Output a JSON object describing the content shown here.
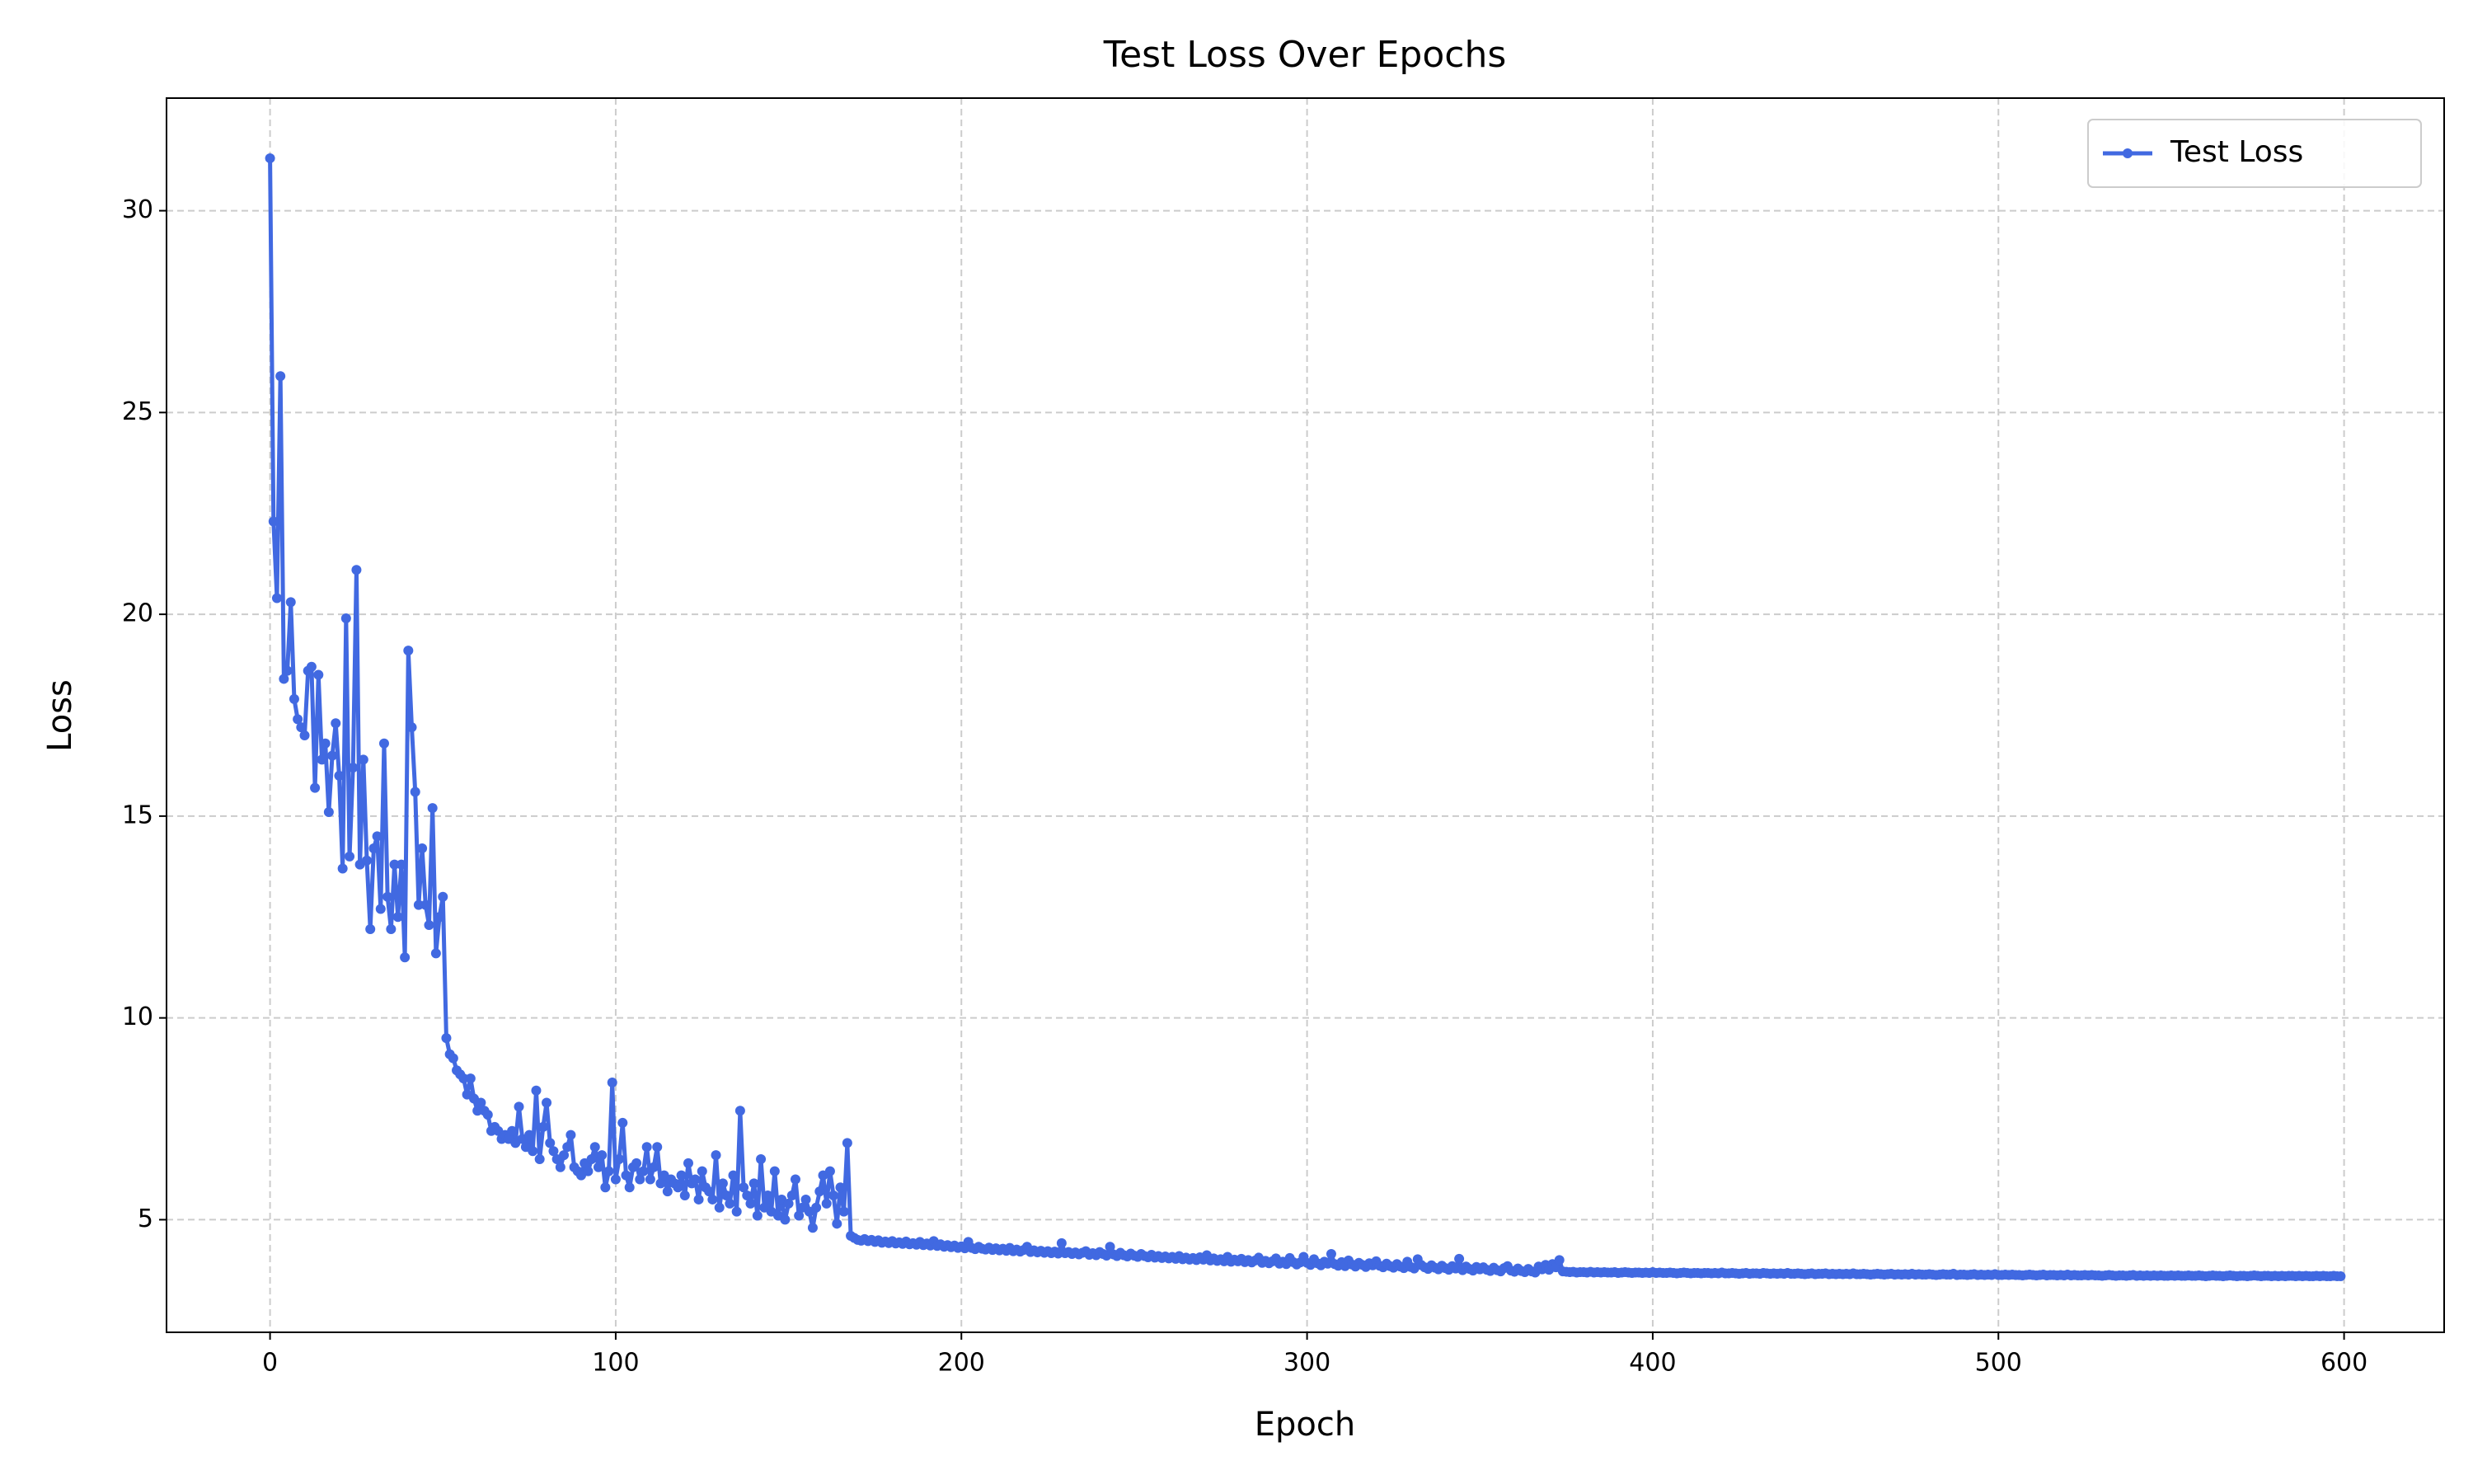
{
  "chart_data": {
    "type": "line",
    "title": "Test Loss Over Epochs",
    "x_label": "Epoch",
    "y_label": "Loss",
    "grid": true,
    "legend": "upper right",
    "xlim": [
      -29.95,
      628.95
    ],
    "ylim": [
      2.21,
      32.79
    ],
    "xticks": [
      0,
      100,
      200,
      300,
      400,
      500,
      600
    ],
    "yticks": [
      5,
      10,
      15,
      20,
      25,
      30
    ],
    "x": [
      0,
      1,
      2,
      3,
      4,
      5,
      6,
      7,
      8,
      9,
      10,
      11,
      12,
      13,
      14,
      15,
      16,
      17,
      18,
      19,
      20,
      21,
      22,
      23,
      24,
      25,
      26,
      27,
      28,
      29,
      30,
      31,
      32,
      33,
      34,
      35,
      36,
      37,
      38,
      39,
      40,
      41,
      42,
      43,
      44,
      45,
      46,
      47,
      48,
      49,
      50,
      51,
      52,
      53,
      54,
      55,
      56,
      57,
      58,
      59,
      60,
      61,
      62,
      63,
      64,
      65,
      66,
      67,
      68,
      69,
      70,
      71,
      72,
      73,
      74,
      75,
      76,
      77,
      78,
      79,
      80,
      81,
      82,
      83,
      84,
      85,
      86,
      87,
      88,
      89,
      90,
      91,
      92,
      93,
      94,
      95,
      96,
      97,
      98,
      99,
      100,
      101,
      102,
      103,
      104,
      105,
      106,
      107,
      108,
      109,
      110,
      111,
      112,
      113,
      114,
      115,
      116,
      117,
      118,
      119,
      120,
      121,
      122,
      123,
      124,
      125,
      126,
      127,
      128,
      129,
      130,
      131,
      132,
      133,
      134,
      135,
      136,
      137,
      138,
      139,
      140,
      141,
      142,
      143,
      144,
      145,
      146,
      147,
      148,
      149,
      150,
      151,
      152,
      153,
      154,
      155,
      156,
      157,
      158,
      159,
      160,
      161,
      162,
      163,
      164,
      165,
      166,
      167,
      168,
      169,
      170,
      171,
      172,
      173,
      174,
      175,
      176,
      177,
      178,
      179,
      180,
      181,
      182,
      183,
      184,
      185,
      186,
      187,
      188,
      189,
      190,
      191,
      192,
      193,
      194,
      195,
      196,
      197,
      198,
      199,
      200,
      201,
      202,
      203,
      204,
      205,
      206,
      207,
      208,
      209,
      210,
      211,
      212,
      213,
      214,
      215,
      216,
      217,
      218,
      219,
      220,
      221,
      222,
      223,
      224,
      225,
      226,
      227,
      228,
      229,
      230,
      231,
      232,
      233,
      234,
      235,
      236,
      237,
      238,
      239,
      240,
      241,
      242,
      243,
      244,
      245,
      246,
      247,
      248,
      249,
      250,
      251,
      252,
      253,
      254,
      255,
      256,
      257,
      258,
      259,
      260,
      261,
      262,
      263,
      264,
      265,
      266,
      267,
      268,
      269,
      270,
      271,
      272,
      273,
      274,
      275,
      276,
      277,
      278,
      279,
      280,
      281,
      282,
      283,
      284,
      285,
      286,
      287,
      288,
      289,
      290,
      291,
      292,
      293,
      294,
      295,
      296,
      297,
      298,
      299,
      300,
      301,
      302,
      303,
      304,
      305,
      306,
      307,
      308,
      309,
      310,
      311,
      312,
      313,
      314,
      315,
      316,
      317,
      318,
      319,
      320,
      321,
      322,
      323,
      324,
      325,
      326,
      327,
      328,
      329,
      330,
      331,
      332,
      333,
      334,
      335,
      336,
      337,
      338,
      339,
      340,
      341,
      342,
      343,
      344,
      345,
      346,
      347,
      348,
      349,
      350,
      351,
      352,
      353,
      354,
      355,
      356,
      357,
      358,
      359,
      360,
      361,
      362,
      363,
      364,
      365,
      366,
      367,
      368,
      369,
      370,
      371,
      372,
      373,
      374,
      375,
      376,
      377,
      378,
      379,
      380,
      381,
      382,
      383,
      384,
      385,
      386,
      387,
      388,
      389,
      390,
      391,
      392,
      393,
      394,
      395,
      396,
      397,
      398,
      399,
      400,
      401,
      402,
      403,
      404,
      405,
      406,
      407,
      408,
      409,
      410,
      411,
      412,
      413,
      414,
      415,
      416,
      417,
      418,
      419,
      420,
      421,
      422,
      423,
      424,
      425,
      426,
      427,
      428,
      429,
      430,
      431,
      432,
      433,
      434,
      435,
      436,
      437,
      438,
      439,
      440,
      441,
      442,
      443,
      444,
      445,
      446,
      447,
      448,
      449,
      450,
      451,
      452,
      453,
      454,
      455,
      456,
      457,
      458,
      459,
      460,
      461,
      462,
      463,
      464,
      465,
      466,
      467,
      468,
      469,
      470,
      471,
      472,
      473,
      474,
      475,
      476,
      477,
      478,
      479,
      480,
      481,
      482,
      483,
      484,
      485,
      486,
      487,
      488,
      489,
      490,
      491,
      492,
      493,
      494,
      495,
      496,
      497,
      498,
      499,
      500,
      501,
      502,
      503,
      504,
      505,
      506,
      507,
      508,
      509,
      510,
      511,
      512,
      513,
      514,
      515,
      516,
      517,
      518,
      519,
      520,
      521,
      522,
      523,
      524,
      525,
      526,
      527,
      528,
      529,
      530,
      531,
      532,
      533,
      534,
      535,
      536,
      537,
      538,
      539,
      540,
      541,
      542,
      543,
      544,
      545,
      546,
      547,
      548,
      549,
      550,
      551,
      552,
      553,
      554,
      555,
      556,
      557,
      558,
      559,
      560,
      561,
      562,
      563,
      564,
      565,
      566,
      567,
      568,
      569,
      570,
      571,
      572,
      573,
      574,
      575,
      576,
      577,
      578,
      579,
      580,
      581,
      582,
      583,
      584,
      585,
      586,
      587,
      588,
      589,
      590,
      591,
      592,
      593,
      594,
      595,
      596,
      597,
      598,
      599
    ],
    "series": [
      {
        "name": "Test Loss",
        "color": "#4169e1",
        "values": [
          31.3,
          22.3,
          20.4,
          25.9,
          18.4,
          18.6,
          20.3,
          17.9,
          17.4,
          17.2,
          17.0,
          18.6,
          18.7,
          15.7,
          18.5,
          16.4,
          16.8,
          15.1,
          16.5,
          17.3,
          16.0,
          13.7,
          19.9,
          14.0,
          16.2,
          21.1,
          13.8,
          16.4,
          13.9,
          12.2,
          14.2,
          14.5,
          12.7,
          16.8,
          13.0,
          12.2,
          13.8,
          12.5,
          13.8,
          11.5,
          19.1,
          17.2,
          15.6,
          12.8,
          14.2,
          12.8,
          12.3,
          15.2,
          11.6,
          12.5,
          13.0,
          9.5,
          9.1,
          9.0,
          8.7,
          8.6,
          8.5,
          8.1,
          8.5,
          8.0,
          7.7,
          7.9,
          7.7,
          7.6,
          7.2,
          7.3,
          7.2,
          7.0,
          7.1,
          7.0,
          7.2,
          6.9,
          7.8,
          7.0,
          6.8,
          7.1,
          6.7,
          8.2,
          6.5,
          7.3,
          7.9,
          6.9,
          6.7,
          6.5,
          6.3,
          6.6,
          6.8,
          7.1,
          6.3,
          6.2,
          6.1,
          6.4,
          6.2,
          6.5,
          6.8,
          6.3,
          6.6,
          5.8,
          6.2,
          8.4,
          6.0,
          6.5,
          7.4,
          6.1,
          5.8,
          6.3,
          6.4,
          6.0,
          6.2,
          6.8,
          6.0,
          6.3,
          6.8,
          5.9,
          6.1,
          5.7,
          6.0,
          5.9,
          5.8,
          6.1,
          5.6,
          6.4,
          5.9,
          6.0,
          5.5,
          6.2,
          5.8,
          5.7,
          5.5,
          6.6,
          5.3,
          5.9,
          5.6,
          5.4,
          6.1,
          5.2,
          7.7,
          5.8,
          5.6,
          5.4,
          5.9,
          5.1,
          6.5,
          5.3,
          5.6,
          5.2,
          6.2,
          5.1,
          5.5,
          5.0,
          5.4,
          5.6,
          6.0,
          5.1,
          5.3,
          5.5,
          5.2,
          4.8,
          5.3,
          5.7,
          6.1,
          5.4,
          6.2,
          5.6,
          4.9,
          5.8,
          5.2,
          6.9,
          4.6,
          4.55,
          4.5,
          4.48,
          4.52,
          4.47,
          4.5,
          4.45,
          4.49,
          4.43,
          4.46,
          4.42,
          4.47,
          4.41,
          4.44,
          4.4,
          4.46,
          4.39,
          4.42,
          4.38,
          4.45,
          4.37,
          4.41,
          4.36,
          4.47,
          4.35,
          4.39,
          4.33,
          4.37,
          4.32,
          4.36,
          4.3,
          4.34,
          4.29,
          4.45,
          4.3,
          4.27,
          4.33,
          4.28,
          4.26,
          4.31,
          4.25,
          4.29,
          4.24,
          4.28,
          4.23,
          4.3,
          4.22,
          4.26,
          4.21,
          4.25,
          4.33,
          4.2,
          4.24,
          4.19,
          4.23,
          4.18,
          4.22,
          4.17,
          4.21,
          4.16,
          4.42,
          4.17,
          4.2,
          4.15,
          4.19,
          4.14,
          4.18,
          4.22,
          4.13,
          4.17,
          4.12,
          4.2,
          4.15,
          4.11,
          4.33,
          4.14,
          4.1,
          4.18,
          4.12,
          4.09,
          4.16,
          4.11,
          4.08,
          4.15,
          4.1,
          4.07,
          4.13,
          4.06,
          4.1,
          4.05,
          4.09,
          4.04,
          4.08,
          4.03,
          4.1,
          4.02,
          4.06,
          4.01,
          4.05,
          4.0,
          4.07,
          4.01,
          4.12,
          3.99,
          4.04,
          3.98,
          4.02,
          3.97,
          4.08,
          3.96,
          4.01,
          3.97,
          4.03,
          3.95,
          4.0,
          3.94,
          3.99,
          4.06,
          3.93,
          3.98,
          3.92,
          3.97,
          4.04,
          3.91,
          3.96,
          3.9,
          4.05,
          3.95,
          3.89,
          3.94,
          4.08,
          3.93,
          3.88,
          4.02,
          3.92,
          3.87,
          3.96,
          3.91,
          4.15,
          3.9,
          3.86,
          3.95,
          3.85,
          3.99,
          3.89,
          3.84,
          3.93,
          3.88,
          3.83,
          3.92,
          3.87,
          3.97,
          3.86,
          3.82,
          3.91,
          3.85,
          3.81,
          3.9,
          3.84,
          3.8,
          3.96,
          3.83,
          3.79,
          4.02,
          3.88,
          3.82,
          3.78,
          3.87,
          3.81,
          3.77,
          3.86,
          3.8,
          3.76,
          3.85,
          3.79,
          4.03,
          3.75,
          3.84,
          3.78,
          3.74,
          3.83,
          3.77,
          3.82,
          3.76,
          3.73,
          3.81,
          3.75,
          3.72,
          3.8,
          3.85,
          3.74,
          3.71,
          3.79,
          3.73,
          3.7,
          3.78,
          3.72,
          3.69,
          3.84,
          3.77,
          3.88,
          3.76,
          3.9,
          3.82,
          4.0,
          3.72,
          3.71,
          3.7,
          3.71,
          3.69,
          3.7,
          3.7,
          3.69,
          3.71,
          3.69,
          3.7,
          3.69,
          3.7,
          3.69,
          3.69,
          3.7,
          3.68,
          3.69,
          3.7,
          3.69,
          3.68,
          3.69,
          3.69,
          3.68,
          3.69,
          3.68,
          3.7,
          3.68,
          3.69,
          3.68,
          3.68,
          3.69,
          3.68,
          3.67,
          3.68,
          3.69,
          3.68,
          3.67,
          3.68,
          3.68,
          3.67,
          3.68,
          3.68,
          3.67,
          3.68,
          3.67,
          3.69,
          3.67,
          3.67,
          3.68,
          3.67,
          3.66,
          3.67,
          3.68,
          3.66,
          3.67,
          3.67,
          3.66,
          3.68,
          3.67,
          3.66,
          3.67,
          3.66,
          3.67,
          3.66,
          3.68,
          3.66,
          3.66,
          3.67,
          3.66,
          3.65,
          3.66,
          3.67,
          3.65,
          3.66,
          3.66,
          3.67,
          3.65,
          3.66,
          3.65,
          3.66,
          3.65,
          3.66,
          3.65,
          3.67,
          3.65,
          3.65,
          3.66,
          3.65,
          3.64,
          3.65,
          3.66,
          3.65,
          3.64,
          3.65,
          3.66,
          3.64,
          3.65,
          3.64,
          3.65,
          3.64,
          3.66,
          3.64,
          3.65,
          3.64,
          3.64,
          3.65,
          3.64,
          3.63,
          3.64,
          3.65,
          3.64,
          3.64,
          3.66,
          3.63,
          3.64,
          3.64,
          3.63,
          3.64,
          3.65,
          3.63,
          3.64,
          3.63,
          3.64,
          3.63,
          3.65,
          3.63,
          3.63,
          3.64,
          3.63,
          3.64,
          3.63,
          3.63,
          3.62,
          3.63,
          3.64,
          3.63,
          3.62,
          3.63,
          3.64,
          3.62,
          3.63,
          3.63,
          3.62,
          3.63,
          3.62,
          3.64,
          3.62,
          3.63,
          3.62,
          3.62,
          3.63,
          3.62,
          3.63,
          3.62,
          3.62,
          3.61,
          3.62,
          3.63,
          3.62,
          3.61,
          3.62,
          3.62,
          3.61,
          3.62,
          3.63,
          3.61,
          3.62,
          3.61,
          3.62,
          3.61,
          3.62,
          3.61,
          3.62,
          3.61,
          3.61,
          3.62,
          3.61,
          3.62,
          3.61,
          3.61,
          3.62,
          3.61,
          3.61,
          3.62,
          3.61,
          3.6,
          3.61,
          3.62,
          3.61,
          3.61,
          3.6,
          3.61,
          3.62,
          3.61,
          3.6,
          3.61,
          3.61,
          3.6,
          3.61,
          3.62,
          3.61,
          3.6,
          3.61,
          3.61,
          3.6,
          3.61,
          3.6,
          3.61,
          3.6,
          3.61,
          3.61,
          3.6,
          3.61,
          3.6,
          3.61,
          3.6,
          3.6,
          3.61,
          3.6,
          3.61,
          3.6,
          3.6,
          3.61,
          3.6,
          3.6
        ]
      }
    ]
  }
}
